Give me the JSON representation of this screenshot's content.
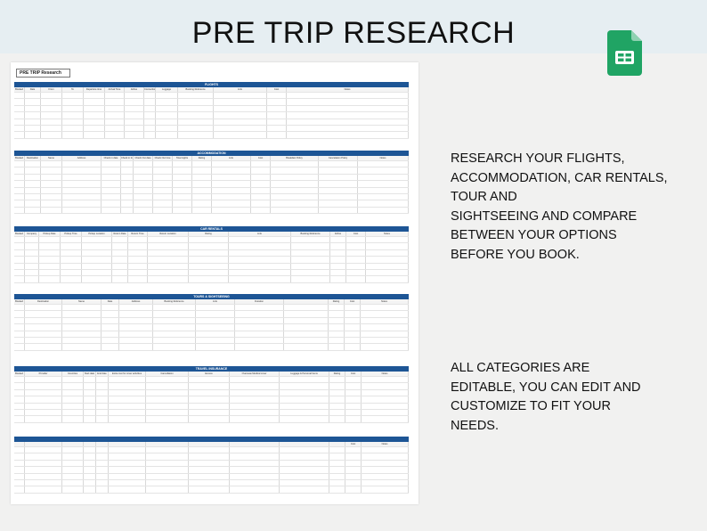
{
  "title": "PRE TRIP RESEARCH",
  "sheet_label": "PRE TRIP Research",
  "logo": {
    "icon": "google-sheets-icon",
    "color": "#20a464"
  },
  "accent_color": "#1d5595",
  "description_1": [
    "RESEARCH YOUR FLIGHTS,",
    "ACCOMMODATION, CAR RENTALS,",
    "TOUR AND",
    "SIGHTSEEING AND COMPARE",
    "BETWEEN YOUR OPTIONS",
    "BEFORE YOU BOOK."
  ],
  "description_2": [
    "ALL CATEGORIES ARE",
    "EDITABLE, YOU CAN EDIT AND",
    "CUSTOMIZE TO FIT YOUR",
    "NEEDS."
  ],
  "sections": [
    {
      "title": "FLIGHTS",
      "columns": [
        "Booked",
        "Date",
        "From",
        "To",
        "Departure time",
        "Arrival Time",
        "Airline",
        "Connections",
        "Luggage",
        "Booking Reference",
        "Link",
        "Cost",
        "Notes"
      ]
    },
    {
      "title": "ACCOMMODATION",
      "columns": [
        "Booked",
        "Destination",
        "Name",
        "Address",
        "Check in date",
        "Check in time",
        "Check Out date",
        "Check Out time",
        "Total nights",
        "Rating",
        "Link",
        "Cost",
        "Breakfast Policy",
        "Cancelation Policy",
        "Notes"
      ]
    },
    {
      "title": "CAR RENTALS",
      "columns": [
        "Booked",
        "Company",
        "Pickup Date",
        "Pickup Time",
        "Pickup Location",
        "Return Date",
        "Return Time",
        "Return Location",
        "Rating",
        "Link",
        "Booking Reference",
        "Airline",
        "Cost",
        "Notes"
      ]
    },
    {
      "title": "TOURS & SIGHTSEEING",
      "columns": [
        "Booked",
        "Destination",
        "Name",
        "Date",
        "Address",
        "Booking Reference",
        "Link",
        "Duration",
        "",
        "Rating",
        "Cost",
        "Notes"
      ]
    },
    {
      "title": "TRAVEL INSURANCE",
      "columns": [
        "Booked",
        "Provider",
        "Countries",
        "Start date",
        "End date",
        "Extra cost for cover activities",
        "Cancellation",
        "Excess",
        "Overseas Medical cover",
        "Luggage & Personal Items",
        "Rating",
        "Cost",
        "Notes"
      ]
    },
    {
      "title": "",
      "columns": [
        "",
        "",
        "",
        "",
        "",
        "",
        "",
        "",
        "",
        "",
        "",
        "Cost",
        "Notes"
      ]
    }
  ]
}
